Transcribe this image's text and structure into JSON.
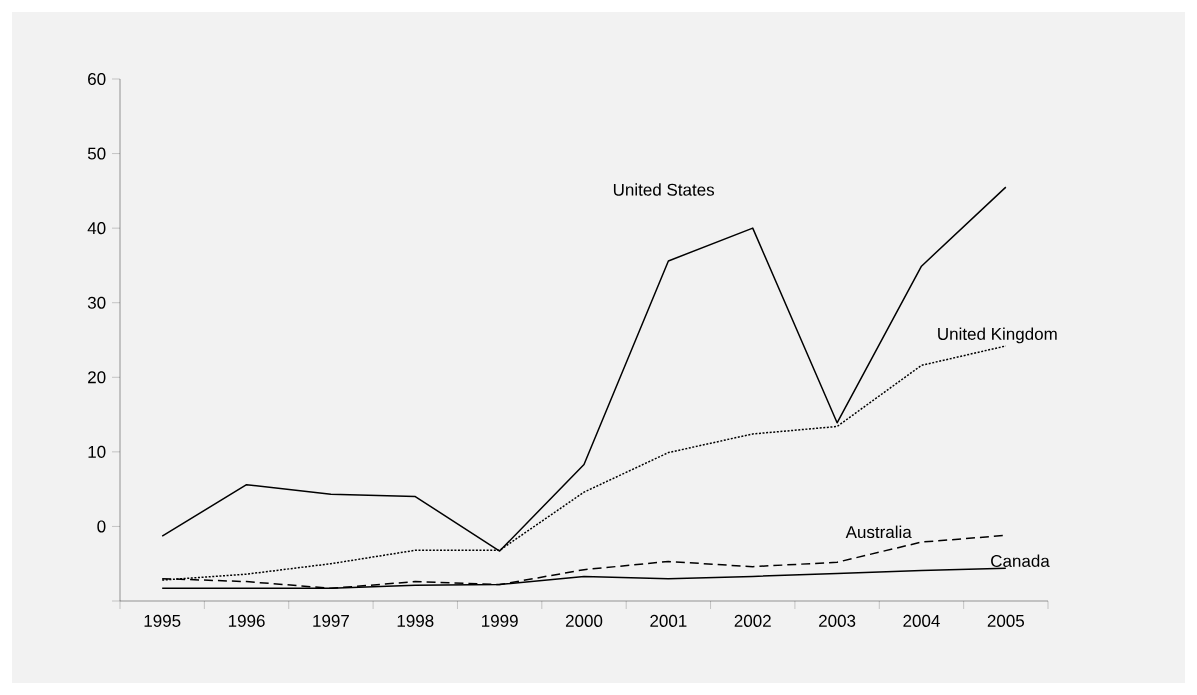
{
  "chart_data": {
    "type": "line",
    "categories": [
      "1995",
      "1996",
      "1997",
      "1998",
      "1999",
      "2000",
      "2001",
      "2002",
      "2003",
      "2004",
      "2005"
    ],
    "series": [
      {
        "name": "United States",
        "color": "#000000",
        "line_style": "solid",
        "values": [
          -1.3,
          5.6,
          4.3,
          4.0,
          -3.3,
          8.3,
          35.6,
          40.0,
          13.9,
          34.9,
          45.5
        ]
      },
      {
        "name": "United Kingdom",
        "color": "#000000",
        "line_style": "dotted",
        "values": [
          -7.2,
          -6.4,
          -5.0,
          -3.2,
          -3.2,
          4.6,
          9.9,
          12.4,
          13.4,
          21.6,
          24.2
        ]
      },
      {
        "name": "Australia",
        "color": "#000000",
        "line_style": "dashed",
        "values": [
          -7.0,
          -7.4,
          -8.3,
          -7.4,
          -7.8,
          -5.8,
          -4.7,
          -5.4,
          -4.8,
          -2.1,
          -1.2
        ]
      },
      {
        "name": "Canada",
        "color": "#000000",
        "line_style": "solid",
        "values": [
          -8.3,
          -8.3,
          -8.3,
          -7.9,
          -7.8,
          -6.7,
          -7.0,
          -6.7,
          -6.3,
          -5.9,
          -5.6
        ]
      }
    ],
    "ylim": [
      -10,
      60
    ],
    "yticks": [
      {
        "value": -10,
        "label": null
      },
      0,
      10,
      20,
      30,
      40,
      50,
      60
    ],
    "grid": false
  }
}
